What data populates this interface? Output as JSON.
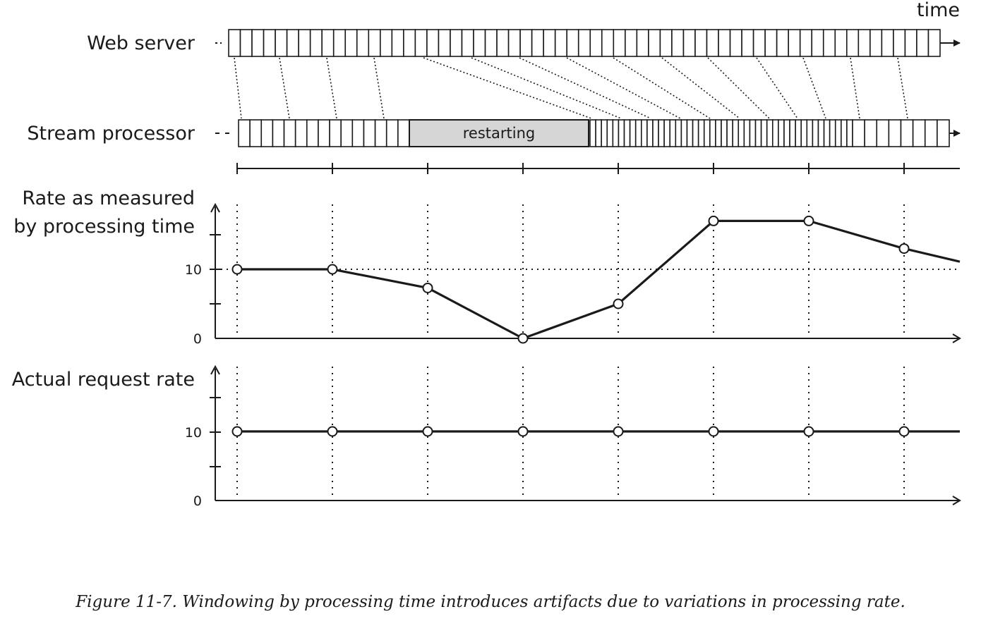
{
  "axis_label": "time",
  "web_server": {
    "label": "Web server"
  },
  "stream_processor": {
    "label": "Stream processor",
    "restart_label": "restarting"
  },
  "measured_chart": {
    "label_line1": "Rate as measured",
    "label_line2": "by processing time",
    "y_ticks": [
      "10",
      "0"
    ],
    "values": [
      10,
      10,
      7.3,
      0,
      5,
      17,
      17,
      13
    ]
  },
  "actual_chart": {
    "label": "Actual request rate",
    "y_ticks": [
      "10",
      "0"
    ],
    "values": [
      10,
      10,
      10,
      10,
      10,
      10,
      10,
      10
    ]
  },
  "caption": "Figure 11-7. Windowing by processing time introduces artifacts due to variations in processing rate."
}
